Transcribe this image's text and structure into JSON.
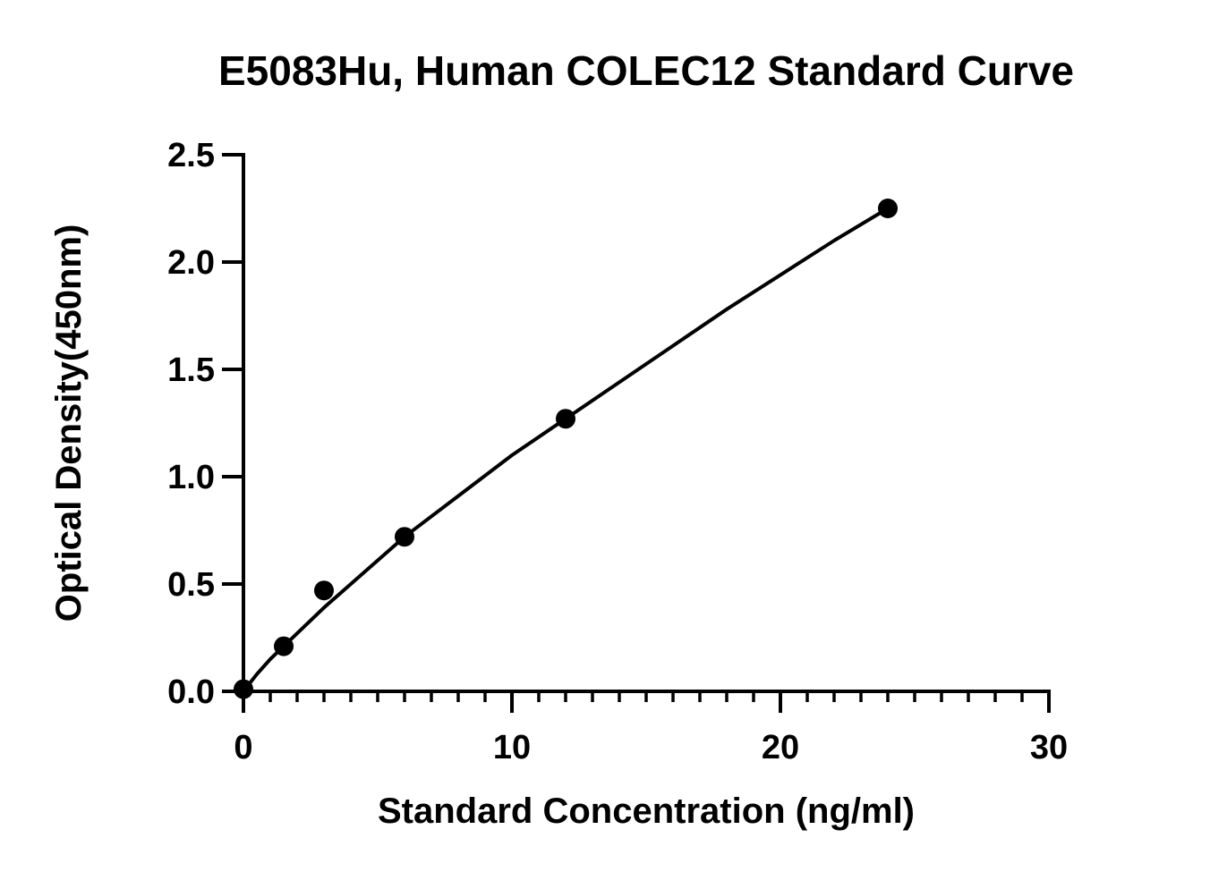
{
  "chart_data": {
    "type": "scatter",
    "title": "E5083Hu, Human COLEC12 Standard Curve",
    "xlabel": "Standard Concentration (ng/ml)",
    "ylabel": "Optical Density(450nm)",
    "xlim": [
      0,
      30
    ],
    "ylim": [
      0,
      2.5
    ],
    "x_ticks": [
      0,
      10,
      20,
      30
    ],
    "x_tick_labels": [
      "0",
      "10",
      "20",
      "30"
    ],
    "x_minor_step": 1,
    "y_ticks": [
      0,
      0.5,
      1.0,
      1.5,
      2.0,
      2.5
    ],
    "y_tick_labels": [
      "0.0",
      "0.5",
      "1.0",
      "1.5",
      "2.0",
      "2.5"
    ],
    "grid": false,
    "series": [
      {
        "x": [
          0,
          1.5,
          3,
          6,
          12,
          24
        ],
        "y": [
          0.01,
          0.21,
          0.47,
          0.72,
          1.27,
          2.25
        ]
      }
    ],
    "fit_curve": {
      "x": [
        0,
        0.5,
        1,
        1.5,
        2,
        3,
        4,
        5,
        6,
        8,
        10,
        12,
        14,
        16,
        18,
        20,
        22,
        24
      ],
      "y": [
        0.0,
        0.08,
        0.15,
        0.21,
        0.27,
        0.39,
        0.5,
        0.61,
        0.72,
        0.91,
        1.1,
        1.27,
        1.44,
        1.61,
        1.78,
        1.94,
        2.1,
        2.25
      ]
    },
    "colors": {
      "marker": "#000000",
      "line": "#000000",
      "axis": "#000000"
    }
  }
}
